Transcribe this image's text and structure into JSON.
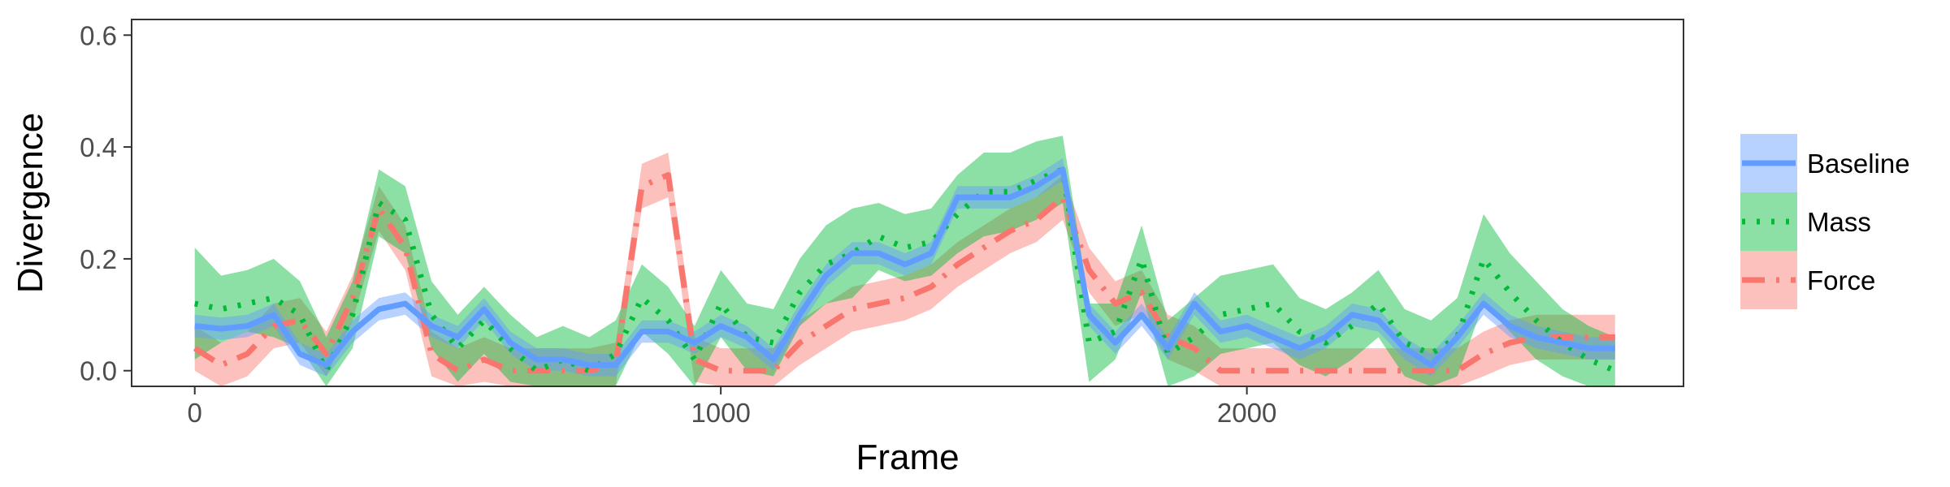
{
  "chart_data": {
    "type": "line",
    "xlabel": "Frame",
    "ylabel": "Divergence",
    "xlim": [
      -120,
      2830
    ],
    "ylim": [
      -0.028,
      0.628
    ],
    "xticks": [
      0,
      1000,
      2000
    ],
    "xtick_labels": [
      "0",
      "1000",
      "2000"
    ],
    "yticks": [
      0.0,
      0.2,
      0.4,
      0.6
    ],
    "ytick_labels": [
      "0.0",
      "0.2",
      "0.4",
      "0.6"
    ],
    "grid": false,
    "legend": {
      "position": "right"
    },
    "x": [
      0,
      50,
      100,
      150,
      200,
      250,
      300,
      350,
      400,
      450,
      500,
      550,
      600,
      650,
      700,
      750,
      800,
      850,
      900,
      950,
      1000,
      1050,
      1100,
      1150,
      1200,
      1250,
      1300,
      1350,
      1400,
      1450,
      1500,
      1550,
      1600,
      1650,
      1700,
      1750,
      1800,
      1850,
      1900,
      1950,
      2000,
      2050,
      2100,
      2150,
      2200,
      2250,
      2300,
      2350,
      2400,
      2450,
      2500,
      2550,
      2600,
      2650,
      2700
    ],
    "series": [
      {
        "name": "Force",
        "color": "#f8766d",
        "line_style": "dashdot",
        "values": [
          0.04,
          0.01,
          0.03,
          0.08,
          0.09,
          0.03,
          0.13,
          0.29,
          0.22,
          0.03,
          0.0,
          0.02,
          0.0,
          0.0,
          0.0,
          0.0,
          0.01,
          0.33,
          0.35,
          0.02,
          0.0,
          0.0,
          0.0,
          0.05,
          0.08,
          0.11,
          0.12,
          0.13,
          0.15,
          0.19,
          0.22,
          0.25,
          0.27,
          0.31,
          0.18,
          0.12,
          0.14,
          0.06,
          0.04,
          0.0,
          0.0,
          0.0,
          0.0,
          0.0,
          0.0,
          0.0,
          0.0,
          0.0,
          0.0,
          0.03,
          0.05,
          0.06,
          0.06,
          0.06,
          0.06
        ],
        "lower": [
          0.0,
          -0.03,
          -0.01,
          0.04,
          0.05,
          -0.01,
          0.09,
          0.25,
          0.18,
          -0.01,
          -0.04,
          -0.02,
          -0.04,
          -0.04,
          -0.04,
          -0.04,
          -0.03,
          0.29,
          0.31,
          -0.02,
          -0.04,
          -0.04,
          -0.04,
          0.01,
          0.04,
          0.07,
          0.08,
          0.09,
          0.11,
          0.15,
          0.18,
          0.21,
          0.23,
          0.27,
          0.14,
          0.08,
          0.1,
          0.02,
          0.0,
          -0.04,
          -0.04,
          -0.04,
          -0.04,
          -0.04,
          -0.04,
          -0.04,
          -0.04,
          -0.04,
          -0.04,
          -0.01,
          0.01,
          0.02,
          0.02,
          0.02,
          0.02
        ],
        "upper": [
          0.08,
          0.05,
          0.07,
          0.12,
          0.13,
          0.07,
          0.17,
          0.33,
          0.26,
          0.07,
          0.04,
          0.06,
          0.04,
          0.04,
          0.04,
          0.04,
          0.05,
          0.37,
          0.39,
          0.06,
          0.04,
          0.04,
          0.04,
          0.09,
          0.12,
          0.15,
          0.16,
          0.17,
          0.19,
          0.23,
          0.26,
          0.29,
          0.31,
          0.35,
          0.22,
          0.16,
          0.18,
          0.1,
          0.08,
          0.04,
          0.04,
          0.04,
          0.04,
          0.04,
          0.04,
          0.04,
          0.04,
          0.04,
          0.04,
          0.07,
          0.09,
          0.1,
          0.1,
          0.1,
          0.1
        ]
      },
      {
        "name": "Mass",
        "color": "#00ba38",
        "line_style": "dotted",
        "values": [
          0.12,
          0.11,
          0.12,
          0.13,
          0.1,
          0.0,
          0.1,
          0.3,
          0.27,
          0.1,
          0.04,
          0.09,
          0.04,
          0.0,
          0.02,
          0.0,
          0.03,
          0.13,
          0.09,
          0.02,
          0.12,
          0.06,
          0.05,
          0.14,
          0.19,
          0.21,
          0.24,
          0.22,
          0.23,
          0.28,
          0.32,
          0.32,
          0.34,
          0.36,
          0.05,
          0.07,
          0.2,
          0.03,
          0.06,
          0.1,
          0.11,
          0.12,
          0.07,
          0.05,
          0.08,
          0.12,
          0.05,
          0.03,
          0.06,
          0.2,
          0.14,
          0.09,
          0.05,
          0.02,
          0.0
        ],
        "lower": [
          0.02,
          0.05,
          0.07,
          0.06,
          0.04,
          -0.06,
          0.04,
          0.24,
          0.21,
          0.04,
          -0.02,
          0.03,
          -0.02,
          -0.06,
          -0.04,
          -0.06,
          -0.03,
          0.07,
          0.03,
          -0.04,
          0.06,
          0.0,
          -0.01,
          0.08,
          0.12,
          0.13,
          0.18,
          0.16,
          0.17,
          0.21,
          0.24,
          0.25,
          0.27,
          0.3,
          -0.02,
          0.02,
          0.14,
          -0.03,
          -0.01,
          0.03,
          0.04,
          0.05,
          0.01,
          -0.01,
          0.02,
          0.06,
          -0.01,
          -0.03,
          -0.01,
          0.12,
          0.07,
          0.02,
          -0.01,
          -0.04,
          -0.06
        ],
        "upper": [
          0.22,
          0.17,
          0.18,
          0.2,
          0.16,
          0.06,
          0.16,
          0.36,
          0.33,
          0.16,
          0.1,
          0.15,
          0.1,
          0.06,
          0.08,
          0.06,
          0.09,
          0.19,
          0.15,
          0.08,
          0.18,
          0.12,
          0.11,
          0.2,
          0.26,
          0.29,
          0.3,
          0.28,
          0.29,
          0.35,
          0.39,
          0.39,
          0.41,
          0.42,
          0.12,
          0.12,
          0.26,
          0.09,
          0.13,
          0.17,
          0.18,
          0.19,
          0.13,
          0.11,
          0.14,
          0.18,
          0.11,
          0.09,
          0.13,
          0.28,
          0.21,
          0.16,
          0.11,
          0.08,
          0.06
        ]
      },
      {
        "name": "Baseline",
        "color": "#619cff",
        "line_style": "solid",
        "values": [
          0.08,
          0.075,
          0.08,
          0.1,
          0.03,
          0.01,
          0.07,
          0.11,
          0.12,
          0.08,
          0.06,
          0.11,
          0.05,
          0.02,
          0.02,
          0.01,
          0.01,
          0.07,
          0.07,
          0.05,
          0.08,
          0.06,
          0.02,
          0.1,
          0.17,
          0.21,
          0.21,
          0.19,
          0.21,
          0.31,
          0.31,
          0.31,
          0.33,
          0.36,
          0.1,
          0.05,
          0.1,
          0.04,
          0.12,
          0.07,
          0.08,
          0.06,
          0.04,
          0.06,
          0.1,
          0.09,
          0.04,
          0.01,
          0.06,
          0.12,
          0.08,
          0.06,
          0.05,
          0.04,
          0.04
        ],
        "lower": [
          0.06,
          0.055,
          0.06,
          0.08,
          0.01,
          -0.01,
          0.05,
          0.09,
          0.1,
          0.06,
          0.04,
          0.09,
          0.03,
          0.0,
          0.0,
          -0.01,
          -0.01,
          0.05,
          0.05,
          0.03,
          0.06,
          0.04,
          0.0,
          0.08,
          0.15,
          0.19,
          0.19,
          0.17,
          0.19,
          0.29,
          0.29,
          0.29,
          0.31,
          0.34,
          0.08,
          0.03,
          0.08,
          0.02,
          0.1,
          0.05,
          0.06,
          0.04,
          0.02,
          0.04,
          0.08,
          0.07,
          0.02,
          -0.01,
          0.04,
          0.1,
          0.06,
          0.04,
          0.03,
          0.02,
          0.02
        ],
        "upper": [
          0.1,
          0.095,
          0.1,
          0.12,
          0.05,
          0.03,
          0.09,
          0.13,
          0.14,
          0.1,
          0.08,
          0.13,
          0.07,
          0.04,
          0.04,
          0.03,
          0.03,
          0.09,
          0.09,
          0.07,
          0.1,
          0.08,
          0.04,
          0.12,
          0.19,
          0.23,
          0.23,
          0.21,
          0.23,
          0.33,
          0.33,
          0.33,
          0.35,
          0.38,
          0.12,
          0.07,
          0.12,
          0.06,
          0.14,
          0.09,
          0.1,
          0.08,
          0.06,
          0.08,
          0.12,
          0.11,
          0.06,
          0.03,
          0.08,
          0.14,
          0.1,
          0.08,
          0.07,
          0.06,
          0.06
        ]
      }
    ],
    "legend_order": [
      "Baseline",
      "Mass",
      "Force"
    ]
  }
}
